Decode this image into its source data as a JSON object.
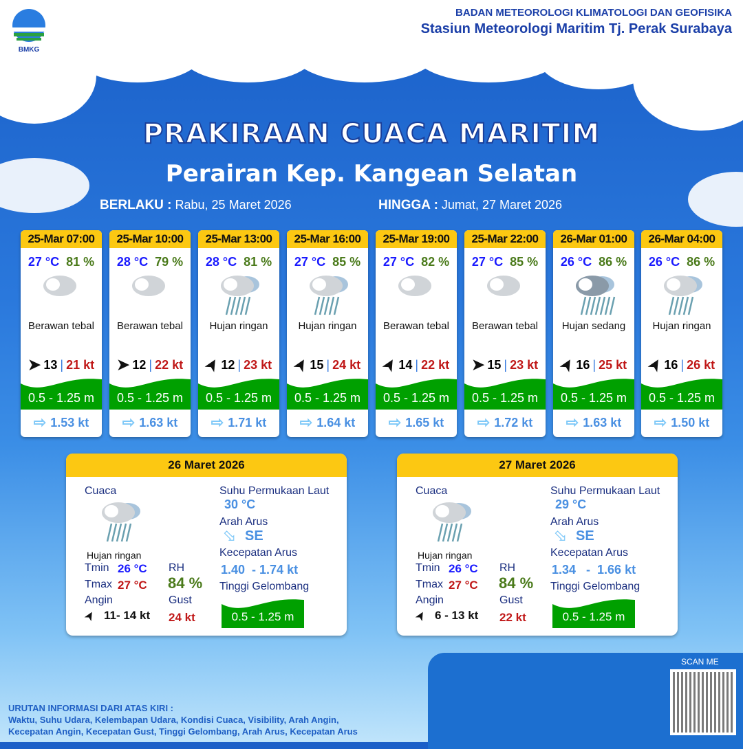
{
  "header": {
    "org": "BADAN METEOROLOGI KLIMATOLOGI DAN GEOFISIKA",
    "station": "Stasiun Meteorologi Maritim Tj. Perak Surabaya",
    "logo_text": "BMKG"
  },
  "title": "PRAKIRAAN CUACA MARITIM",
  "subtitle": "Perairan Kep. Kangean Selatan",
  "validity": {
    "from_label": "BERLAKU :",
    "from": "Rabu, 25 Maret 2026",
    "to_label": "HINGGA :",
    "to": "Jumat, 27 Maret 2026"
  },
  "forecasts": [
    {
      "time": "25-Mar 07:00",
      "temp": "27 °C",
      "rh": "81 %",
      "icon": "cloudy-icon",
      "cond": "Berawan tebal",
      "wind_dir": "E",
      "wind": "13",
      "gust": "21 kt",
      "wave": "0.5 - 1.25 m",
      "current": "1.53 kt"
    },
    {
      "time": "25-Mar 10:00",
      "temp": "28 °C",
      "rh": "79 %",
      "icon": "cloudy-icon",
      "cond": "Berawan tebal",
      "wind_dir": "E",
      "wind": "12",
      "gust": "22 kt",
      "wave": "0.5 - 1.25 m",
      "current": "1.63 kt"
    },
    {
      "time": "25-Mar 13:00",
      "temp": "28 °C",
      "rh": "81 %",
      "icon": "light-rain-icon",
      "cond": "Hujan ringan",
      "wind_dir": "NE",
      "wind": "12",
      "gust": "23 kt",
      "wave": "0.5 - 1.25 m",
      "current": "1.71 kt"
    },
    {
      "time": "25-Mar 16:00",
      "temp": "27 °C",
      "rh": "85 %",
      "icon": "light-rain-icon",
      "cond": "Hujan ringan",
      "wind_dir": "NE",
      "wind": "15",
      "gust": "24 kt",
      "wave": "0.5 - 1.25 m",
      "current": "1.64 kt"
    },
    {
      "time": "25-Mar 19:00",
      "temp": "27 °C",
      "rh": "82 %",
      "icon": "cloudy-icon",
      "cond": "Berawan tebal",
      "wind_dir": "NE",
      "wind": "14",
      "gust": "22 kt",
      "wave": "0.5 - 1.25 m",
      "current": "1.65 kt"
    },
    {
      "time": "25-Mar 22:00",
      "temp": "27 °C",
      "rh": "85 %",
      "icon": "cloudy-icon",
      "cond": "Berawan tebal",
      "wind_dir": "E",
      "wind": "15",
      "gust": "23 kt",
      "wave": "0.5 - 1.25 m",
      "current": "1.72 kt"
    },
    {
      "time": "26-Mar 01:00",
      "temp": "26 °C",
      "rh": "86 %",
      "icon": "moderate-rain-icon",
      "cond": "Hujan sedang",
      "wind_dir": "NE",
      "wind": "16",
      "gust": "25 kt",
      "wave": "0.5 - 1.25 m",
      "current": "1.63 kt"
    },
    {
      "time": "26-Mar 04:00",
      "temp": "26 °C",
      "rh": "86 %",
      "icon": "light-rain-icon",
      "cond": "Hujan ringan",
      "wind_dir": "NE",
      "wind": "16",
      "gust": "26 kt",
      "wave": "0.5 - 1.25 m",
      "current": "1.50 kt"
    }
  ],
  "labels": {
    "cuaca": "Cuaca",
    "tmin": "Tmin",
    "tmax": "Tmax",
    "angin": "Angin",
    "rh": "RH",
    "gust": "Gust",
    "sst": "Suhu Permukaan Laut",
    "arah_arus": "Arah Arus",
    "kec_arus": "Kecepatan Arus",
    "tinggi": "Tinggi Gelombang"
  },
  "daily": [
    {
      "date": "26 Maret 2026",
      "cond": "Hujan ringan",
      "tmin": "26 °C",
      "tmax": "27 °C",
      "wind": "11- 14 kt",
      "rh": "84 %",
      "gust": "24 kt",
      "sst": "30 °C",
      "cur_dir": "SE",
      "cur_speed": "1.40  - 1.74 kt",
      "wave": "0.5 - 1.25 m"
    },
    {
      "date": "27 Maret 2026",
      "cond": "Hujan ringan",
      "tmin": "26 °C",
      "tmax": "27 °C",
      "wind": "6  - 13 kt",
      "rh": "84 %",
      "gust": "22 kt",
      "sst": "29 °C",
      "cur_dir": "SE",
      "cur_speed": "1.34   -  1.66 kt",
      "wave": "0.5 - 1.25 m"
    }
  ],
  "footer": {
    "heading": "URUTAN INFORMASI DARI ATAS KIRI :",
    "line1": "Waktu, Suhu Udara, Kelembapan Udara, Kondisi Cuaca, Visibility, Arah Angin,",
    "line2": "Kecepatan Angin, Kecepatan Gust, Tinggi Gelombang, Arah Arus, Kecepatan Arus",
    "scan": "SCAN ME"
  },
  "colors": {
    "header_yellow": "#fcc812",
    "wave_green": "#00a000",
    "temp_blue": "#1a1aff",
    "gust_red": "#c01818",
    "rh_green": "#4a7a1a"
  }
}
